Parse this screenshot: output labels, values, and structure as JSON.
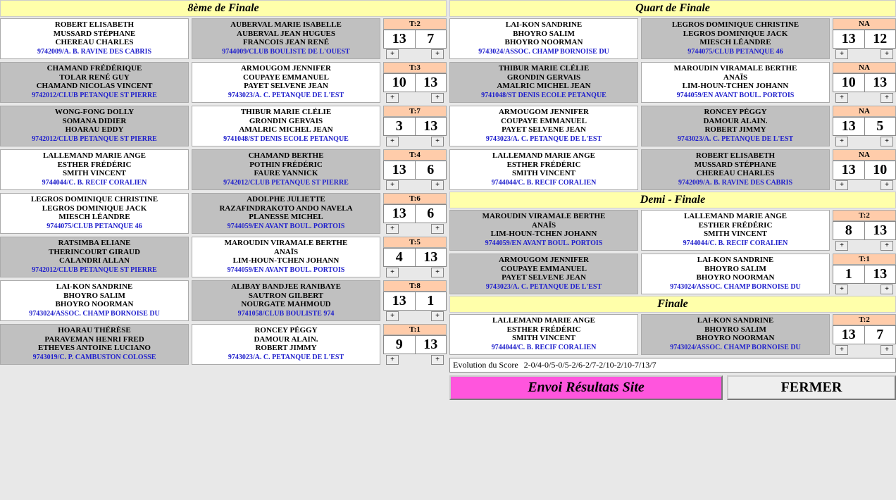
{
  "labels": {
    "envoi": "Envoi Résultats Site",
    "fermer": "FERMER",
    "evolution": "Evolution du Score",
    "evolution_value": "2-0/4-0/5-0/5-2/6-2/7-2/10-2/10-7/13/7"
  },
  "rounds": {
    "r16": {
      "title": "8ème de Finale",
      "matches": [
        {
          "t": "T:2",
          "s1": "13",
          "s2": "7",
          "a": {
            "bg": "white",
            "p": [
              "ROBERT ELISABETH",
              "MUSSARD STÉPHANE",
              "CHEREAU CHARLES"
            ],
            "c": "9742009/A. B. RAVINE DES CABRIS"
          },
          "b": {
            "bg": "grey",
            "p": [
              "AUBERVAL MARIE ISABELLE",
              "AUBERVAL JEAN HUGUES",
              "FRANCOIS JEAN RENÉ"
            ],
            "c": "9744009/CLUB BOULISTE DE L'OUEST"
          }
        },
        {
          "t": "T:3",
          "s1": "10",
          "s2": "13",
          "a": {
            "bg": "grey",
            "p": [
              "CHAMAND FRÉDÉRIQUE",
              "TOLAR RENÉ GUY",
              "CHAMAND NICOLAS VINCENT"
            ],
            "c": "9742012/CLUB PETANQUE ST PIERRE"
          },
          "b": {
            "bg": "white",
            "p": [
              "ARMOUGOM JENNIFER",
              "COUPAYE EMMANUEL",
              "PAYET SELVENE JEAN"
            ],
            "c": "9743023/A. C. PETANQUE DE L'EST"
          }
        },
        {
          "t": "T:7",
          "s1": "3",
          "s2": "13",
          "a": {
            "bg": "grey",
            "p": [
              "WONG-FONG DOLLY",
              "SOMANA DIDIER",
              "HOARAU EDDY"
            ],
            "c": "9742012/CLUB PETANQUE ST PIERRE"
          },
          "b": {
            "bg": "white",
            "p": [
              "THIBUR MARIE CLÉLIE",
              "GRONDIN GERVAIS",
              "AMALRIC MICHEL JEAN"
            ],
            "c": "9741048/ST DENIS ECOLE PETANQUE"
          }
        },
        {
          "t": "T:4",
          "s1": "13",
          "s2": "6",
          "a": {
            "bg": "white",
            "p": [
              "LALLEMAND MARIE ANGE",
              "ESTHER FRÉDÉRIC",
              "SMITH VINCENT"
            ],
            "c": "9744044/C. B. RECIF CORALIEN"
          },
          "b": {
            "bg": "grey",
            "p": [
              "CHAMAND BERTHE",
              "POTHIN FRÉDÉRIC",
              "FAURE YANNICK"
            ],
            "c": "9742012/CLUB PETANQUE ST PIERRE"
          }
        },
        {
          "t": "T:6",
          "s1": "13",
          "s2": "6",
          "a": {
            "bg": "white",
            "p": [
              "LEGROS DOMINIQUE CHRISTINE",
              "LEGROS DOMINIQUE JACK",
              "MIESCH LÉANDRE"
            ],
            "c": "9744075/CLUB PETANQUE 46"
          },
          "b": {
            "bg": "grey",
            "p": [
              "ADOLPHE JULIETTE",
              "RAZAFINDRAKOTO ANDO NAVELA",
              "PLANESSE MICHEL"
            ],
            "c": "9744059/EN AVANT BOUL. PORTOIS"
          }
        },
        {
          "t": "T:5",
          "s1": "4",
          "s2": "13",
          "a": {
            "bg": "grey",
            "p": [
              "RATSIMBA ELIANE",
              "THERINCOURT GIRAUD",
              "CALANDRI ALLAN"
            ],
            "c": "9742012/CLUB PETANQUE ST PIERRE"
          },
          "b": {
            "bg": "white",
            "p": [
              "MAROUDIN VIRAMALE BERTHE",
              "ANAÏS",
              "LIM-HOUN-TCHEN JOHANN"
            ],
            "c": "9744059/EN AVANT BOUL. PORTOIS"
          }
        },
        {
          "t": "T:8",
          "s1": "13",
          "s2": "1",
          "a": {
            "bg": "white",
            "p": [
              "LAI-KON SANDRINE",
              "BHOYRO SALIM",
              "BHOYRO NOORMAN"
            ],
            "c": "9743024/ASSOC. CHAMP BORNOISE DU"
          },
          "b": {
            "bg": "grey",
            "p": [
              "ALIBAY BANDJEE RANIBAYE",
              "SAUTRON GILBERT",
              "NOURGATE MAHMOUD"
            ],
            "c": "9741058/CLUB BOULISTE 974"
          }
        },
        {
          "t": "T:1",
          "s1": "9",
          "s2": "13",
          "a": {
            "bg": "grey",
            "p": [
              "HOARAU THÉRÈSE",
              "PARAVEMAN HENRI FRED",
              "ETHEVES ANTOINE LUCIANO"
            ],
            "c": "9743019/C. P. CAMBUSTON COLOSSE"
          },
          "b": {
            "bg": "white",
            "p": [
              "RONCEY PÉGGY",
              "DAMOUR ALAIN.",
              "ROBERT JIMMY"
            ],
            "c": "9743023/A. C. PETANQUE DE L'EST"
          }
        }
      ]
    },
    "qf": {
      "title": "Quart de Finale",
      "matches": [
        {
          "t": "NA",
          "s1": "13",
          "s2": "12",
          "a": {
            "bg": "white",
            "p": [
              "LAI-KON SANDRINE",
              "BHOYRO SALIM",
              "BHOYRO NOORMAN"
            ],
            "c": "9743024/ASSOC. CHAMP BORNOISE DU"
          },
          "b": {
            "bg": "grey",
            "p": [
              "LEGROS DOMINIQUE CHRISTINE",
              "LEGROS DOMINIQUE JACK",
              "MIESCH LÉANDRE"
            ],
            "c": "9744075/CLUB PETANQUE 46"
          }
        },
        {
          "t": "NA",
          "s1": "10",
          "s2": "13",
          "a": {
            "bg": "grey",
            "p": [
              "THIBUR MARIE CLÉLIE",
              "GRONDIN GERVAIS",
              "AMALRIC MICHEL JEAN"
            ],
            "c": "9741048/ST DENIS ECOLE PETANQUE"
          },
          "b": {
            "bg": "white",
            "p": [
              "MAROUDIN VIRAMALE BERTHE",
              "ANAÏS",
              "LIM-HOUN-TCHEN JOHANN"
            ],
            "c": "9744059/EN AVANT BOUL. PORTOIS"
          }
        },
        {
          "t": "NA",
          "s1": "13",
          "s2": "5",
          "a": {
            "bg": "white",
            "p": [
              "ARMOUGOM JENNIFER",
              "COUPAYE EMMANUEL",
              "PAYET SELVENE JEAN"
            ],
            "c": "9743023/A. C. PETANQUE DE L'EST"
          },
          "b": {
            "bg": "grey",
            "p": [
              "RONCEY PÉGGY",
              "DAMOUR ALAIN.",
              "ROBERT JIMMY"
            ],
            "c": "9743023/A. C. PETANQUE DE L'EST"
          }
        },
        {
          "t": "NA",
          "s1": "13",
          "s2": "10",
          "a": {
            "bg": "white",
            "p": [
              "LALLEMAND MARIE ANGE",
              "ESTHER FRÉDÉRIC",
              "SMITH VINCENT"
            ],
            "c": "9744044/C. B. RECIF CORALIEN"
          },
          "b": {
            "bg": "grey",
            "p": [
              "ROBERT ELISABETH",
              "MUSSARD STÉPHANE",
              "CHEREAU CHARLES"
            ],
            "c": "9742009/A. B. RAVINE DES CABRIS"
          }
        }
      ]
    },
    "sf": {
      "title": "Demi - Finale",
      "matches": [
        {
          "t": "T:2",
          "s1": "8",
          "s2": "13",
          "a": {
            "bg": "grey",
            "p": [
              "MAROUDIN VIRAMALE BERTHE",
              "ANAÏS",
              "LIM-HOUN-TCHEN JOHANN"
            ],
            "c": "9744059/EN AVANT BOUL. PORTOIS"
          },
          "b": {
            "bg": "white",
            "p": [
              "LALLEMAND MARIE ANGE",
              "ESTHER FRÉDÉRIC",
              "SMITH VINCENT"
            ],
            "c": "9744044/C. B. RECIF CORALIEN"
          }
        },
        {
          "t": "T:1",
          "s1": "1",
          "s2": "13",
          "a": {
            "bg": "grey",
            "p": [
              "ARMOUGOM JENNIFER",
              "COUPAYE EMMANUEL",
              "PAYET SELVENE JEAN"
            ],
            "c": "9743023/A. C. PETANQUE DE L'EST"
          },
          "b": {
            "bg": "white",
            "p": [
              "LAI-KON SANDRINE",
              "BHOYRO SALIM",
              "BHOYRO NOORMAN"
            ],
            "c": "9743024/ASSOC. CHAMP BORNOISE DU"
          }
        }
      ]
    },
    "f": {
      "title": "Finale",
      "matches": [
        {
          "t": "T:2",
          "s1": "13",
          "s2": "7",
          "a": {
            "bg": "white",
            "p": [
              "LALLEMAND MARIE ANGE",
              "ESTHER FRÉDÉRIC",
              "SMITH VINCENT"
            ],
            "c": "9744044/C. B. RECIF CORALIEN"
          },
          "b": {
            "bg": "grey",
            "p": [
              "LAI-KON SANDRINE",
              "BHOYRO SALIM",
              "BHOYRO NOORMAN"
            ],
            "c": "9743024/ASSOC. CHAMP BORNOISE DU"
          }
        }
      ]
    }
  }
}
